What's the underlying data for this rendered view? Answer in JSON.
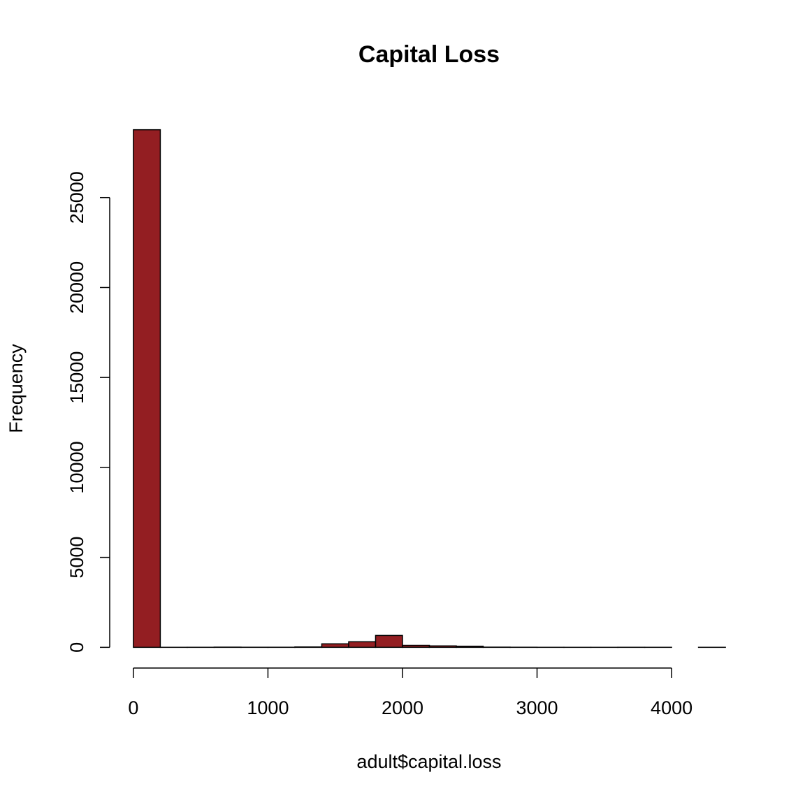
{
  "chart_data": {
    "type": "histogram",
    "title": "Capital Loss",
    "x_label": "adult$capital.loss",
    "y_label": "Frequency",
    "bins": [
      0,
      200,
      400,
      600,
      800,
      1000,
      1200,
      1400,
      1600,
      1800,
      2000,
      2200,
      2400,
      2600,
      2800,
      3000,
      3200,
      3400,
      3600,
      3800,
      4000,
      4200,
      4400
    ],
    "values": [
      28770,
      2,
      3,
      10,
      5,
      5,
      20,
      195,
      310,
      660,
      110,
      80,
      60,
      10,
      5,
      2,
      1,
      1,
      3,
      2,
      0,
      2
    ],
    "color": "#931e22",
    "xlim": [
      -176,
      4576
    ],
    "ylim": [
      -1151,
      29922
    ],
    "xticks": [
      0,
      1000,
      2000,
      3000,
      4000
    ],
    "yticks": [
      0,
      5000,
      10000,
      15000,
      20000,
      25000
    ]
  }
}
